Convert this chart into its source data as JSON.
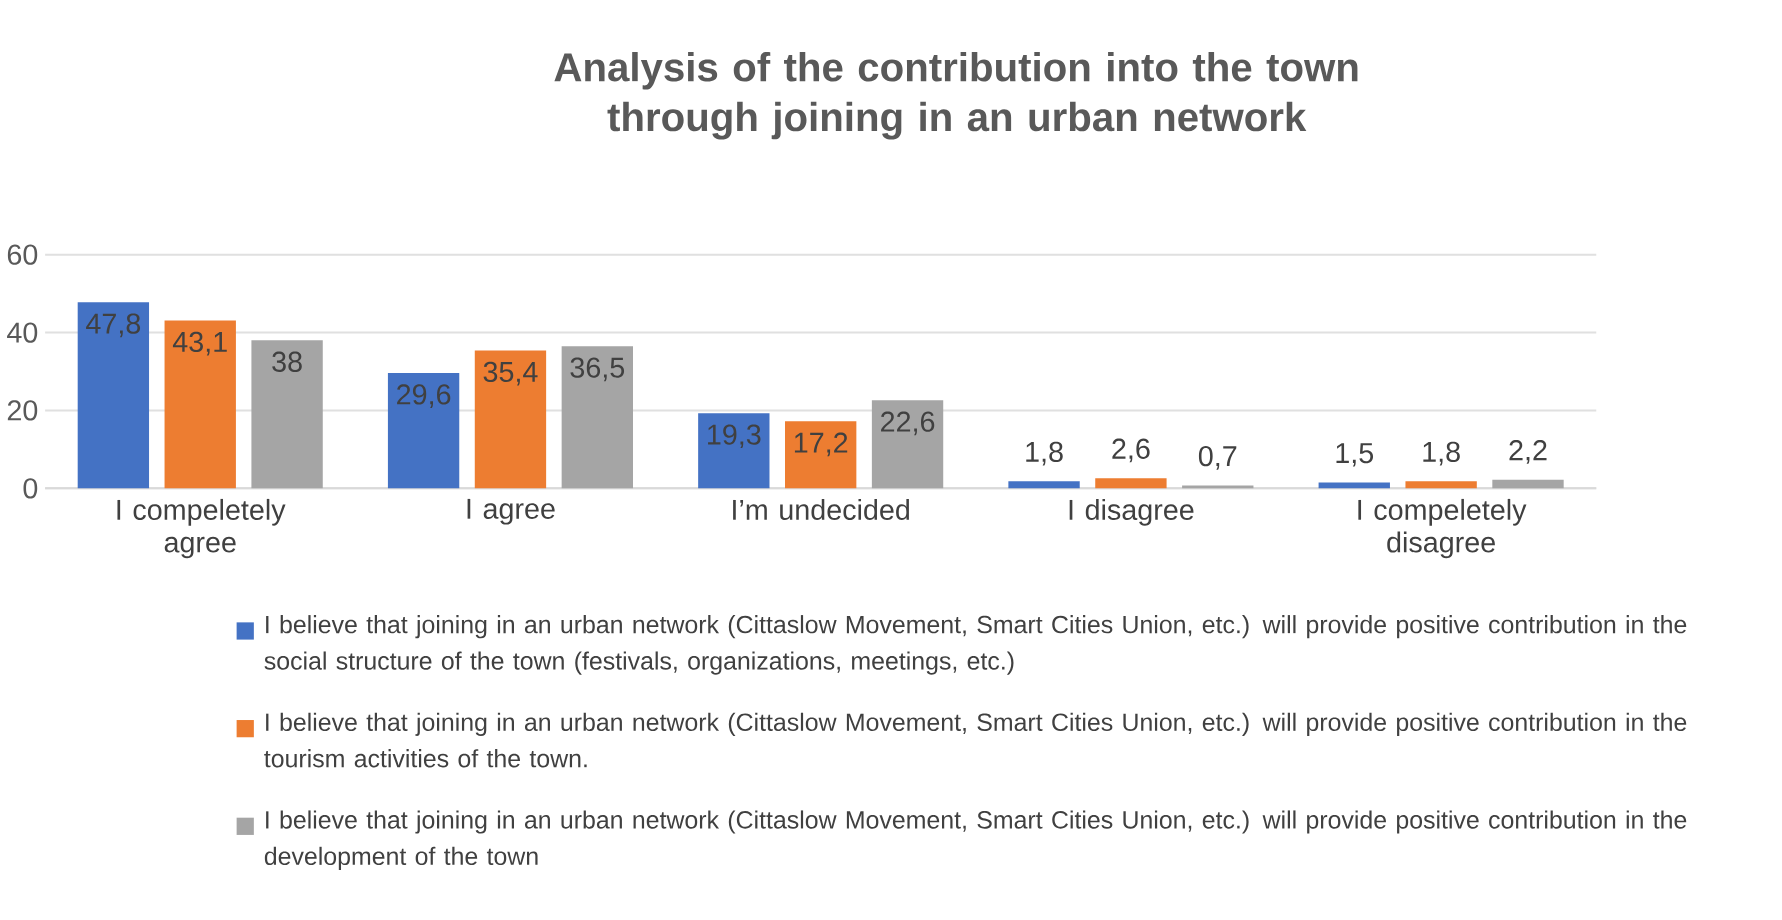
{
  "chart_data": {
    "type": "bar",
    "title": "Analysis of the contribution into the town through joining in an urban network",
    "categories": [
      "I compeletely agree",
      "I agree",
      "I’m undecided",
      "I disagree",
      "I compeletely disagree"
    ],
    "series": [
      {
        "name": "I believe that joining in an urban network (Cittaslow Movement, Smart Cities Union, etc.) will provide positive contribution in the social structure of the town (festivals, organizations, meetings, etc.)",
        "color": "#4472c4",
        "values": [
          47.8,
          29.6,
          19.3,
          1.8,
          1.5
        ],
        "value_labels": [
          "47,8",
          "29,6",
          "19,3",
          "1,8",
          "1,5"
        ]
      },
      {
        "name": "I believe that joining in an urban network (Cittaslow Movement, Smart Cities Union, etc.) will provide positive contribution in the tourism activities of the town.",
        "color": "#ed7d31",
        "values": [
          43.1,
          35.4,
          17.2,
          2.6,
          1.8
        ],
        "value_labels": [
          "43,1",
          "35,4",
          "17,2",
          "2,6",
          "1,8"
        ]
      },
      {
        "name": "I believe that joining in an urban network (Cittaslow Movement, Smart Cities Union, etc.) will provide positive contribution in the development of the town",
        "color": "#a5a5a5",
        "values": [
          38,
          36.5,
          22.6,
          0.7,
          2.2
        ],
        "value_labels": [
          "38",
          "36,5",
          "22,6",
          "0,7",
          "2,2"
        ]
      }
    ],
    "ylim": [
      0,
      60
    ],
    "yticks": [
      0,
      20,
      40,
      60
    ],
    "grid": "y",
    "legend": "bottom"
  }
}
